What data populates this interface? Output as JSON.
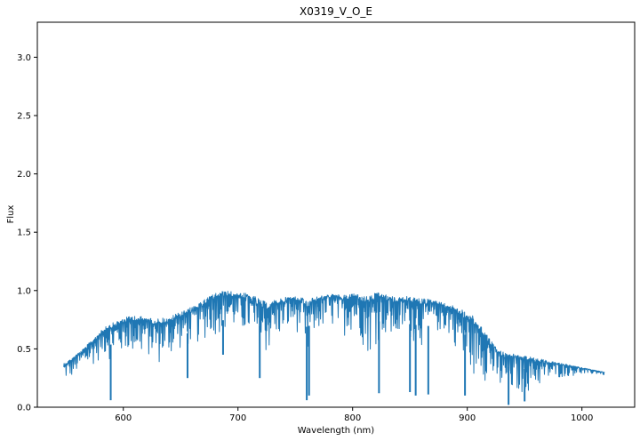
{
  "chart_data": {
    "type": "line",
    "title": "X0319_V_O_E",
    "xlabel": "Wavelength (nm)",
    "ylabel": "Flux",
    "xlim": [
      525,
      1046
    ],
    "ylim": [
      0,
      3.3
    ],
    "xticks": [
      600,
      700,
      800,
      900,
      1000
    ],
    "yticks": [
      0.0,
      0.5,
      1.0,
      1.5,
      2.0,
      2.5,
      3.0
    ],
    "xtick_labels": [
      "600",
      "700",
      "800",
      "900",
      "1000"
    ],
    "ytick_labels": [
      "0.0",
      "0.5",
      "1.0",
      "1.5",
      "2.0",
      "2.5",
      "3.0"
    ],
    "grid": false,
    "color": "#1f77b4",
    "series": [
      {
        "x": [
          548,
          552,
          556,
          560,
          565,
          570,
          575,
          580,
          585,
          590,
          595,
          600,
          605,
          610,
          615,
          620,
          625,
          630,
          635,
          640,
          645,
          650,
          655,
          660,
          665,
          670,
          675,
          680,
          685,
          690,
          695,
          700,
          705,
          710,
          715,
          720,
          725,
          730,
          735,
          740,
          745,
          750,
          755,
          758,
          760,
          762,
          765,
          770,
          775,
          780,
          785,
          790,
          795,
          800,
          805,
          810,
          815,
          820,
          825,
          830,
          835,
          840,
          845,
          850,
          855,
          860,
          865,
          870,
          875,
          880,
          885,
          890,
          895,
          900,
          905,
          910,
          915,
          920,
          925,
          930,
          935,
          940,
          945,
          950,
          955,
          960,
          965,
          970,
          975,
          980,
          985,
          990,
          995,
          1000,
          1005,
          1010,
          1015,
          1020
        ],
        "upper": [
          0.38,
          0.4,
          0.43,
          0.46,
          0.5,
          0.55,
          0.6,
          0.65,
          0.7,
          0.72,
          0.74,
          0.76,
          0.78,
          0.79,
          0.78,
          0.77,
          0.76,
          0.76,
          0.77,
          0.76,
          0.8,
          0.82,
          0.84,
          0.86,
          0.88,
          0.92,
          0.95,
          0.98,
          0.99,
          1.0,
          0.99,
          0.98,
          0.98,
          0.97,
          0.95,
          0.92,
          0.9,
          0.91,
          0.93,
          0.94,
          0.95,
          0.95,
          0.94,
          0.93,
          0.92,
          0.93,
          0.94,
          0.95,
          0.96,
          0.97,
          0.97,
          0.96,
          0.96,
          0.98,
          0.97,
          0.95,
          0.96,
          0.98,
          0.98,
          0.96,
          0.95,
          0.94,
          0.95,
          0.95,
          0.94,
          0.93,
          0.93,
          0.92,
          0.91,
          0.89,
          0.88,
          0.86,
          0.84,
          0.82,
          0.78,
          0.72,
          0.66,
          0.58,
          0.52,
          0.48,
          0.46,
          0.46,
          0.45,
          0.44,
          0.43,
          0.42,
          0.41,
          0.4,
          0.39,
          0.38,
          0.37,
          0.36,
          0.35,
          0.34,
          0.33,
          0.32,
          0.31,
          0.3
        ],
        "lower": [
          0.22,
          0.2,
          0.24,
          0.28,
          0.3,
          0.32,
          0.36,
          0.4,
          0.42,
          0.38,
          0.4,
          0.42,
          0.44,
          0.4,
          0.38,
          0.42,
          0.38,
          0.34,
          0.36,
          0.4,
          0.44,
          0.46,
          0.48,
          0.5,
          0.52,
          0.55,
          0.58,
          0.6,
          0.62,
          0.62,
          0.62,
          0.6,
          0.58,
          0.56,
          0.38,
          0.3,
          0.4,
          0.48,
          0.55,
          0.58,
          0.62,
          0.64,
          0.6,
          0.35,
          0.2,
          0.38,
          0.55,
          0.62,
          0.64,
          0.66,
          0.64,
          0.62,
          0.6,
          0.64,
          0.62,
          0.48,
          0.4,
          0.5,
          0.6,
          0.55,
          0.5,
          0.52,
          0.6,
          0.55,
          0.52,
          0.5,
          0.52,
          0.6,
          0.62,
          0.6,
          0.58,
          0.5,
          0.3,
          0.2,
          0.22,
          0.25,
          0.22,
          0.2,
          0.1,
          0.05,
          0.04,
          0.06,
          0.08,
          0.1,
          0.12,
          0.14,
          0.16,
          0.2,
          0.22,
          0.24,
          0.25,
          0.26,
          0.27,
          0.27,
          0.27,
          0.28,
          0.28,
          0.27
        ]
      }
    ],
    "absorption_lines": [
      {
        "x": 589,
        "y": 0.06
      },
      {
        "x": 656,
        "y": 0.25
      },
      {
        "x": 687,
        "y": 0.45
      },
      {
        "x": 719,
        "y": 0.25
      },
      {
        "x": 760,
        "y": 0.06
      },
      {
        "x": 762,
        "y": 0.1
      },
      {
        "x": 823,
        "y": 0.12
      },
      {
        "x": 850,
        "y": 0.13
      },
      {
        "x": 855,
        "y": 0.1
      },
      {
        "x": 866,
        "y": 0.11
      },
      {
        "x": 898,
        "y": 0.1
      },
      {
        "x": 936,
        "y": 0.02
      },
      {
        "x": 950,
        "y": 0.05
      }
    ]
  }
}
